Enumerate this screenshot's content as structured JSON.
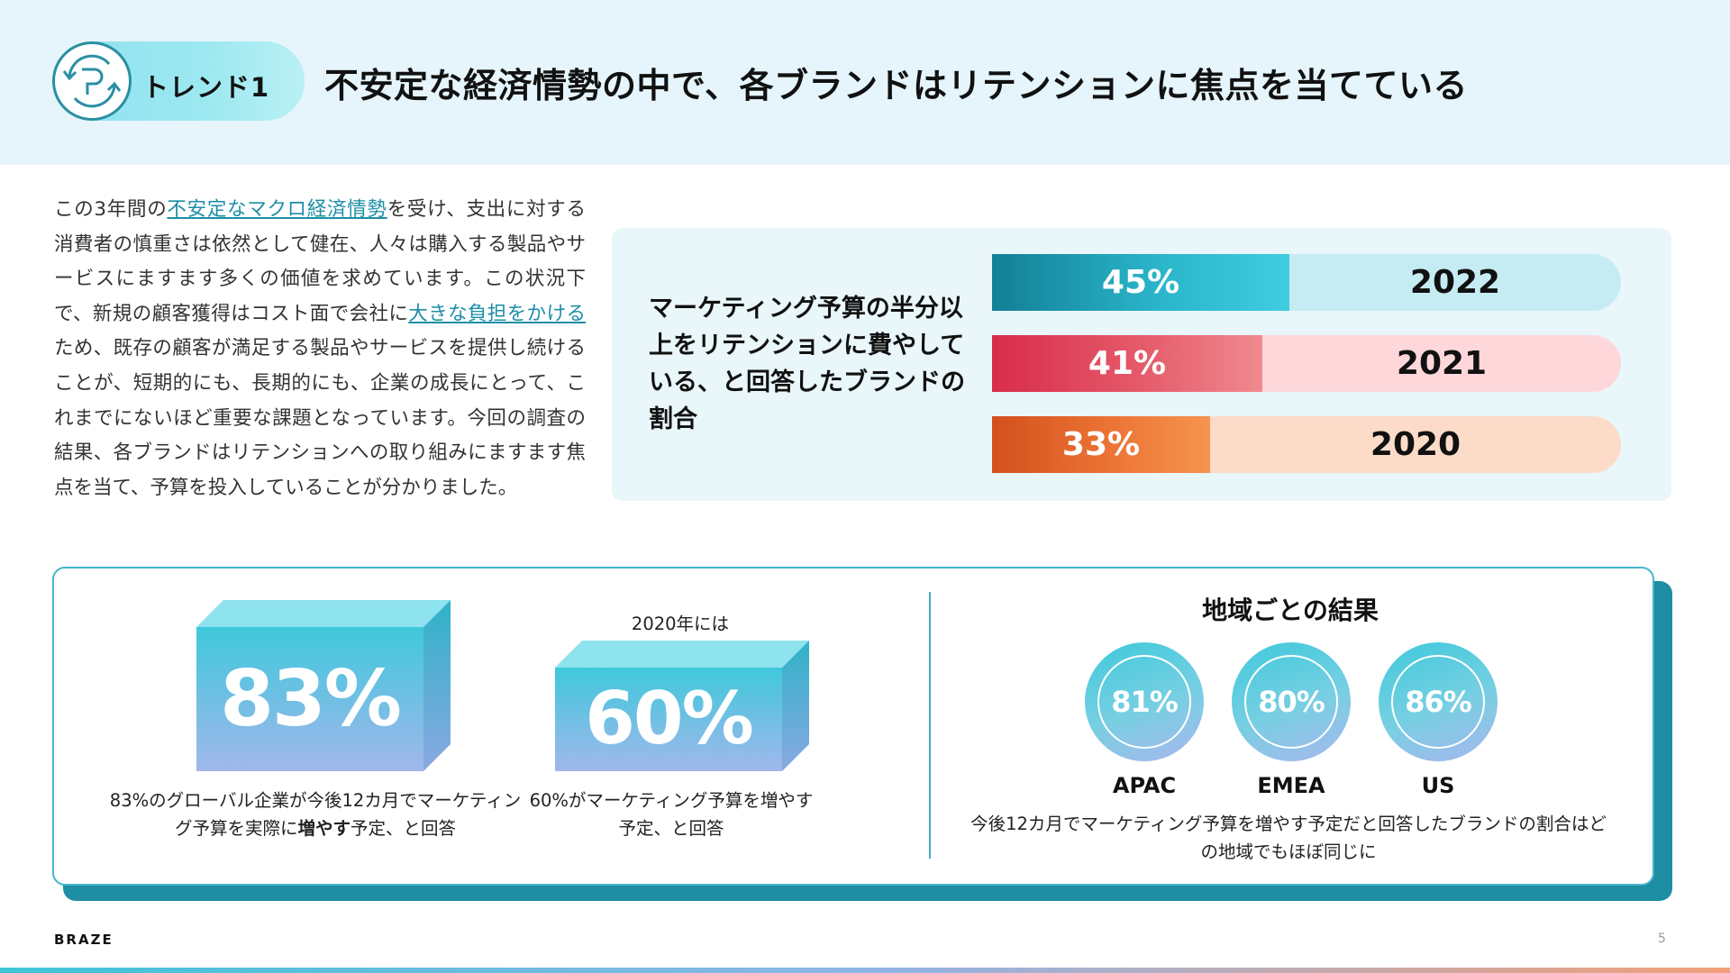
{
  "header": {
    "trend_label": "トレンド1",
    "title": "不安定な経済情勢の中で、各ブランドはリテンションに焦点を当てている"
  },
  "intro": {
    "part1": "この3年間の",
    "link1": "不安定なマクロ経済情勢",
    "part2": "を受け、支出に対する消費者の慎重さは依然として健在、人々は購入する製品やサービスにますます多くの価値を求めています。この状況下で、新規の顧客獲得はコスト面で会社に",
    "link2": "大きな負担をかける",
    "part3": "ため、既存の顧客が満足する製品やサービスを提供し続けることが、短期的にも、長期的にも、企業の成長にとって、これまでにないほど重要な課題となっています。今回の調査の結果、各ブランドはリテンションへの取り組みにますます焦点を当て、予算を投入していることが分かりました。"
  },
  "retention_chart": {
    "caption": "マーケティング予算の半分以上をリテンションに費やしている、と回答したブランドの割合",
    "bars": [
      {
        "label": "45%",
        "year": "2022",
        "value": 45
      },
      {
        "label": "41%",
        "year": "2021",
        "value": 41
      },
      {
        "label": "33%",
        "year": "2020",
        "value": 33
      }
    ]
  },
  "chart_data": {
    "type": "bar",
    "title": "マーケティング予算の半分以上をリテンションに費やしている、と回答したブランドの割合",
    "categories": [
      "2022",
      "2021",
      "2020"
    ],
    "values": [
      45,
      41,
      33
    ],
    "xlabel": "",
    "ylabel": "",
    "ylim": [
      0,
      100
    ]
  },
  "stats": {
    "global": {
      "value": "83%",
      "desc_pre": "83%のグローバル企業が今後12カ月でマーケティング予算を実際に",
      "desc_bold": "増やす",
      "desc_post": "予定、と回答"
    },
    "y2020": {
      "caption": "2020年には",
      "value": "60%",
      "desc": "60%がマーケティング予算を増やす予定、と回答"
    }
  },
  "regions": {
    "title": "地域ごとの結果",
    "items": [
      {
        "value": "81%",
        "name": "APAC"
      },
      {
        "value": "80%",
        "name": "EMEA"
      },
      {
        "value": "86%",
        "name": "US"
      }
    ],
    "desc": "今後12カ月でマーケティング予算を増やす予定だと回答したブランドの割合はどの地域でもほぼ同じに"
  },
  "footer": {
    "brand": "BRAZE",
    "page": "5"
  },
  "colors": {
    "teal": "#2ec3d6",
    "red": "#dc3550",
    "orange": "#e0581f"
  }
}
